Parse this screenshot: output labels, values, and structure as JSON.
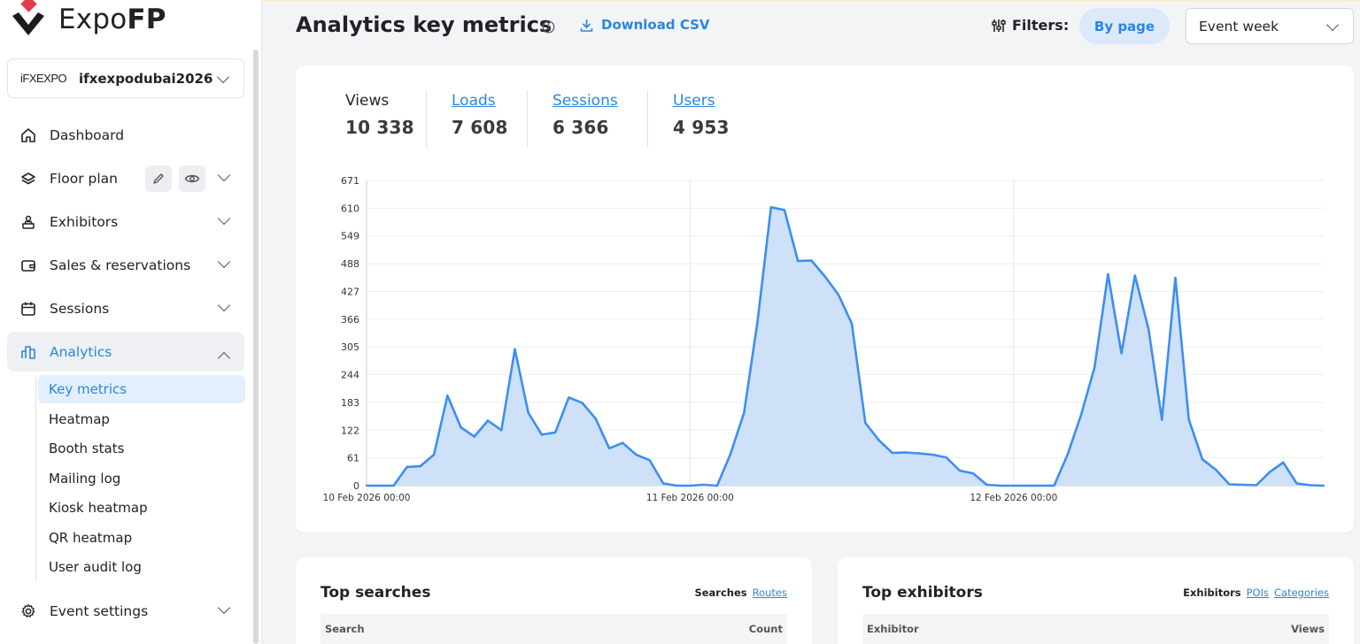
{
  "app": {
    "logo_text_a": "Expo",
    "logo_text_b": "FP"
  },
  "event": {
    "logo_text": "iFXEXPO",
    "name": "ifxexpodubai2026"
  },
  "nav": {
    "dashboard": "Dashboard",
    "floor_plan": "Floor plan",
    "exhibitors": "Exhibitors",
    "sales": "Sales & reservations",
    "sessions": "Sessions",
    "analytics": "Analytics",
    "event_settings": "Event settings",
    "sub": [
      "Key metrics",
      "Heatmap",
      "Booth stats",
      "Mailing log",
      "Kiosk heatmap",
      "QR heatmap",
      "User audit log"
    ]
  },
  "header": {
    "title": "Analytics key metrics",
    "download": "Download CSV",
    "filters": "Filters:",
    "by_page": "By page",
    "period": "Event week"
  },
  "stats": [
    {
      "label": "Views",
      "value": "10 338"
    },
    {
      "label": "Loads",
      "value": "7 608"
    },
    {
      "label": "Sessions",
      "value": "6 366"
    },
    {
      "label": "Users",
      "value": "4 953"
    }
  ],
  "colors": {
    "accent": "#2a86df",
    "line": "#3d8ef0",
    "fill": "#c5dcf7"
  },
  "chart_data": {
    "type": "area",
    "title": "",
    "xlabel": "",
    "ylabel": "",
    "ylim": [
      0,
      671
    ],
    "yticks": [
      0,
      61,
      122,
      183,
      244,
      305,
      366,
      427,
      488,
      549,
      610,
      671
    ],
    "xticks": [
      {
        "label": "10 Feb 2026 00:00",
        "hour": 0
      },
      {
        "label": "11 Feb 2026 00:00",
        "hour": 24
      },
      {
        "label": "12 Feb 2026 00:00",
        "hour": 48
      }
    ],
    "grid": true,
    "series": [
      {
        "name": "",
        "x_hours": [
          0,
          1,
          2,
          3,
          4,
          5,
          6,
          7,
          8,
          9,
          10,
          11,
          12,
          13,
          14,
          15,
          16,
          17,
          18,
          19,
          20,
          21,
          22,
          23,
          24,
          25,
          26,
          27,
          28,
          29,
          30,
          31,
          32,
          33,
          34,
          35,
          36,
          37,
          38,
          39,
          40,
          41,
          42,
          43,
          44,
          45,
          46,
          47,
          48,
          49,
          50,
          51,
          52,
          53,
          54,
          55,
          56,
          57,
          58,
          59,
          60,
          61,
          62,
          63,
          64,
          65,
          66,
          67,
          68,
          69,
          70,
          71
        ],
        "values": [
          0,
          0,
          0,
          41,
          43,
          68,
          198,
          128,
          108,
          143,
          122,
          300,
          160,
          112,
          117,
          194,
          182,
          147,
          82,
          94,
          68,
          56,
          5,
          0,
          0,
          2,
          0,
          70,
          160,
          360,
          612,
          606,
          494,
          495,
          460,
          420,
          356,
          138,
          100,
          72,
          73,
          71,
          68,
          62,
          33,
          27,
          2,
          0,
          0,
          0,
          0,
          0,
          68,
          155,
          260,
          465,
          291,
          462,
          345,
          145,
          457,
          145,
          58,
          35,
          3,
          2,
          1,
          30,
          51,
          5,
          1,
          0
        ]
      }
    ]
  },
  "top_searches": {
    "title": "Top searches",
    "tab_active": "Searches",
    "tab_link": "Routes",
    "col1": "Search",
    "col2": "Count"
  },
  "top_exhibitors": {
    "title": "Top exhibitors",
    "tab_active": "Exhibitors",
    "tab_link1": "POIs",
    "tab_link2": "Categories",
    "col1": "Exhibitor",
    "col2": "Views"
  }
}
